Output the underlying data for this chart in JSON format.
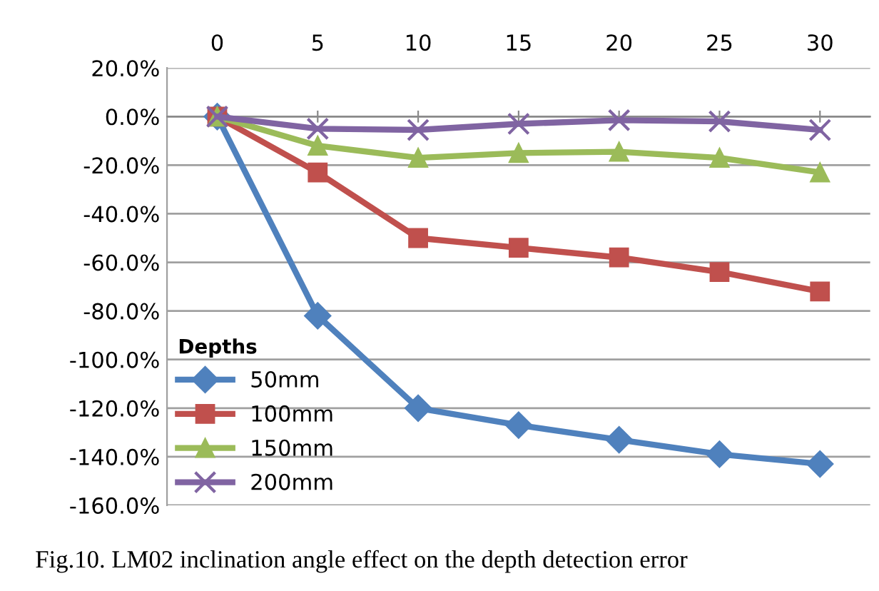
{
  "chart_data": {
    "type": "line",
    "categories": [
      "0",
      "5",
      "10",
      "15",
      "20",
      "25",
      "30"
    ],
    "series": [
      {
        "name": "50mm",
        "color": "#4f81bd",
        "marker": "diamond",
        "values": [
          0,
          -82,
          -120,
          -127,
          -133,
          -139,
          -143
        ]
      },
      {
        "name": "100mm",
        "color": "#c0504d",
        "marker": "square",
        "values": [
          0,
          -23,
          -50,
          -54,
          -58,
          -64,
          -72
        ]
      },
      {
        "name": "150mm",
        "color": "#9bbb59",
        "marker": "triangle",
        "values": [
          0,
          -12,
          -17,
          -15,
          -14.5,
          -17,
          -23
        ]
      },
      {
        "name": "200mm",
        "color": "#8064a2",
        "marker": "cross",
        "values": [
          0,
          -5,
          -5.5,
          -3,
          -1.5,
          -2,
          -5.5
        ]
      }
    ],
    "legend_title": "Depths",
    "legend": "bottom left",
    "ylim": [
      -160,
      20
    ],
    "yticks": [
      {
        "value": -160,
        "label": "-160.0%"
      },
      {
        "value": -140,
        "label": "-140.0%"
      },
      {
        "value": -120,
        "label": "-120.0%"
      },
      {
        "value": -100,
        "label": "-100.0%"
      },
      {
        "value": -80,
        "label": "-80.0%"
      },
      {
        "value": -60,
        "label": "-60.0%"
      },
      {
        "value": -40,
        "label": "-40.0%"
      },
      {
        "value": -20,
        "label": "-20.0%"
      },
      {
        "value": 0,
        "label": "0.0%"
      },
      {
        "value": 20,
        "label": "20.0%"
      }
    ],
    "grid": "y",
    "line_style": "solid",
    "annotations": [
      "Fig.10. LM02 inclination angle effect on the depth detection error"
    ]
  }
}
